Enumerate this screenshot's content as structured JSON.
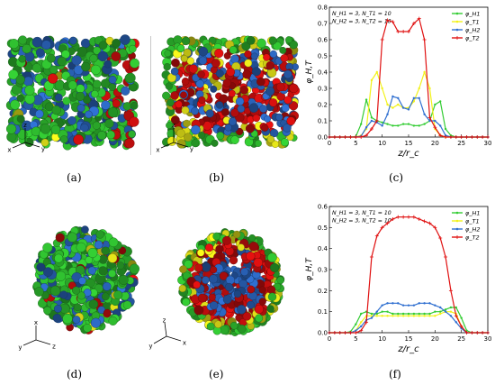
{
  "figure": {
    "panels": [
      {
        "id": "a",
        "caption": "(a)",
        "kind": "render",
        "view": "cylinder-side",
        "axes": {
          "labels": [
            "x",
            "z",
            "y"
          ]
        }
      },
      {
        "id": "b",
        "caption": "(b)",
        "kind": "render",
        "view": "cylinder-cut",
        "axes": {
          "labels": [
            "x",
            "z",
            "y"
          ]
        }
      },
      {
        "id": "c",
        "caption": "(c)",
        "kind": "chart"
      },
      {
        "id": "d",
        "caption": "(d)",
        "kind": "render",
        "view": "sphere",
        "axes": {
          "labels": [
            "x",
            "y",
            "z"
          ]
        }
      },
      {
        "id": "e",
        "caption": "(e)",
        "kind": "render",
        "view": "sphere-cut",
        "axes": {
          "labels": [
            "z",
            "y",
            "x"
          ]
        }
      },
      {
        "id": "f",
        "caption": "(f)",
        "kind": "chart"
      }
    ],
    "particle_colors": {
      "H1": "#33cc33",
      "T1": "#f2f21a",
      "H2": "#2f6fd0",
      "T2": "#e01010"
    }
  },
  "chart_data": [
    {
      "type": "line",
      "panel": "c",
      "annotation_lines": [
        "N_H1 = 3, N_T1 = 10",
        "N_H2 = 3, N_T2 = 10"
      ],
      "xlabel": "z/r_c",
      "ylabel": "φ_H,T",
      "xlim": [
        0,
        30
      ],
      "ylim": [
        0,
        0.8
      ],
      "xticks": [
        0,
        5,
        10,
        15,
        20,
        25,
        30
      ],
      "yticks": [
        0,
        0.1,
        0.2,
        0.3,
        0.4,
        0.5,
        0.6,
        0.7,
        0.8
      ],
      "legend_position": "top-right",
      "x": [
        0,
        1,
        2,
        3,
        4,
        5,
        6,
        7,
        8,
        9,
        10,
        11,
        12,
        13,
        14,
        15,
        16,
        17,
        18,
        19,
        20,
        21,
        22,
        23,
        24,
        25,
        26,
        27,
        28,
        29,
        30
      ],
      "series": [
        {
          "name": "φ_H1",
          "color": "#33cc33",
          "marker": "dot",
          "values": [
            0,
            0,
            0,
            0,
            0,
            0.003,
            0.08,
            0.23,
            0.12,
            0.1,
            0.09,
            0.08,
            0.07,
            0.07,
            0.08,
            0.08,
            0.07,
            0.07,
            0.08,
            0.1,
            0.2,
            0.22,
            0.05,
            0.01,
            0,
            0,
            0,
            0,
            0,
            0,
            0
          ]
        },
        {
          "name": "φ_T1",
          "color": "#f2f21a",
          "marker": "dot",
          "values": [
            0,
            0,
            0,
            0,
            0,
            0,
            0.01,
            0.05,
            0.35,
            0.4,
            0.3,
            0.2,
            0.18,
            0.2,
            0.18,
            0.18,
            0.22,
            0.3,
            0.4,
            0.3,
            0.05,
            0.01,
            0,
            0,
            0,
            0,
            0,
            0,
            0,
            0,
            0
          ]
        },
        {
          "name": "φ_H2",
          "color": "#2f6fd0",
          "marker": "dot",
          "values": [
            0,
            0,
            0,
            0,
            0,
            0,
            0.005,
            0.06,
            0.1,
            0.09,
            0.07,
            0.14,
            0.25,
            0.24,
            0.18,
            0.17,
            0.24,
            0.24,
            0.14,
            0.1,
            0.1,
            0.07,
            0.01,
            0,
            0,
            0,
            0,
            0,
            0,
            0,
            0
          ]
        },
        {
          "name": "φ_T2",
          "color": "#e01010",
          "marker": "plus",
          "values": [
            0,
            0,
            0,
            0,
            0,
            0,
            0,
            0.01,
            0.05,
            0.1,
            0.6,
            0.72,
            0.71,
            0.65,
            0.65,
            0.65,
            0.7,
            0.73,
            0.6,
            0.12,
            0.06,
            0.01,
            0,
            0,
            0,
            0,
            0,
            0,
            0,
            0,
            0
          ]
        }
      ]
    },
    {
      "type": "line",
      "panel": "f",
      "annotation_lines": [
        "N_H1 = 3, N_T1 = 10",
        "N_H2 = 3, N_T2 = 10"
      ],
      "xlabel": "z/r_c",
      "ylabel": "φ_H,T",
      "xlim": [
        0,
        30
      ],
      "ylim": [
        0,
        0.6
      ],
      "xticks": [
        0,
        5,
        10,
        15,
        20,
        25,
        30
      ],
      "yticks": [
        0,
        0.1,
        0.2,
        0.3,
        0.4,
        0.5,
        0.6
      ],
      "legend_position": "top-right",
      "x": [
        0,
        1,
        2,
        3,
        4,
        5,
        6,
        7,
        8,
        9,
        10,
        11,
        12,
        13,
        14,
        15,
        16,
        17,
        18,
        19,
        20,
        21,
        22,
        23,
        24,
        25,
        26,
        27,
        28,
        29,
        30
      ],
      "series": [
        {
          "name": "φ_H1",
          "color": "#33cc33",
          "marker": "dot",
          "values": [
            0,
            0,
            0,
            0,
            0.005,
            0.04,
            0.09,
            0.1,
            0.09,
            0.09,
            0.1,
            0.1,
            0.09,
            0.09,
            0.09,
            0.09,
            0.09,
            0.09,
            0.09,
            0.09,
            0.1,
            0.1,
            0.11,
            0.12,
            0.12,
            0.07,
            0.01,
            0,
            0,
            0,
            0
          ]
        },
        {
          "name": "φ_T1",
          "color": "#f2f21a",
          "marker": "dot",
          "values": [
            0,
            0,
            0,
            0,
            0,
            0.01,
            0.05,
            0.08,
            0.08,
            0.08,
            0.08,
            0.08,
            0.08,
            0.08,
            0.08,
            0.08,
            0.08,
            0.08,
            0.08,
            0.08,
            0.08,
            0.09,
            0.1,
            0.1,
            0.09,
            0.03,
            0,
            0,
            0,
            0,
            0
          ]
        },
        {
          "name": "φ_H2",
          "color": "#2f6fd0",
          "marker": "dot",
          "values": [
            0,
            0,
            0,
            0,
            0,
            0.01,
            0.03,
            0.06,
            0.07,
            0.1,
            0.13,
            0.14,
            0.14,
            0.14,
            0.13,
            0.13,
            0.13,
            0.14,
            0.14,
            0.14,
            0.13,
            0.12,
            0.1,
            0.08,
            0.05,
            0.02,
            0,
            0,
            0,
            0,
            0
          ]
        },
        {
          "name": "φ_T2",
          "color": "#e01010",
          "marker": "plus",
          "values": [
            0,
            0,
            0,
            0,
            0,
            0,
            0.01,
            0.05,
            0.36,
            0.46,
            0.5,
            0.52,
            0.54,
            0.55,
            0.55,
            0.55,
            0.55,
            0.54,
            0.53,
            0.52,
            0.5,
            0.45,
            0.36,
            0.2,
            0.08,
            0.03,
            0,
            0,
            0,
            0,
            0
          ]
        }
      ]
    }
  ]
}
